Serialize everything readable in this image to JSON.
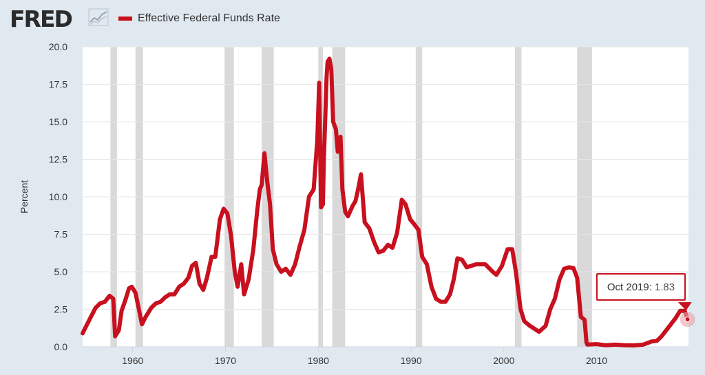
{
  "brand": {
    "logo_text": "FRED"
  },
  "colors": {
    "series": "#c8101e",
    "recession": "#d9d9d9",
    "plot_bg": "#ffffff",
    "page_bg": "#e1e9f0"
  },
  "tooltip": {
    "date": "Oct 2019",
    "separator": ":",
    "value": "1.83"
  },
  "chart_data": {
    "type": "line",
    "title": "",
    "xlabel": "",
    "ylabel": "Percent",
    "xlim": [
      1954.6,
      2019.9
    ],
    "ylim": [
      0,
      20
    ],
    "yticks": [
      "0.0",
      "2.5",
      "5.0",
      "7.5",
      "10.0",
      "12.5",
      "15.0",
      "17.5",
      "20.0"
    ],
    "xticks": [
      "1960",
      "1970",
      "1980",
      "1990",
      "2000",
      "2010"
    ],
    "legend": {
      "placement": "top-left",
      "entries": [
        "Effective Federal Funds Rate"
      ]
    },
    "recessions": [
      [
        1957.6,
        1958.3
      ],
      [
        1960.3,
        1961.1
      ],
      [
        1969.9,
        1970.9
      ],
      [
        1973.9,
        1975.2
      ],
      [
        1980.0,
        1980.5
      ],
      [
        1981.5,
        1982.9
      ],
      [
        1990.5,
        1991.2
      ],
      [
        2001.2,
        2001.9
      ],
      [
        2007.9,
        2009.5
      ]
    ],
    "series": [
      {
        "name": "Effective Federal Funds Rate",
        "x": [
          1954.6,
          1955.0,
          1955.5,
          1956.0,
          1956.5,
          1957.0,
          1957.5,
          1957.9,
          1958.1,
          1958.5,
          1958.8,
          1959.2,
          1959.6,
          1959.9,
          1960.3,
          1960.7,
          1961.0,
          1961.4,
          1962.0,
          1962.5,
          1963.0,
          1963.5,
          1964.0,
          1964.5,
          1965.0,
          1965.5,
          1966.0,
          1966.4,
          1966.8,
          1967.2,
          1967.6,
          1968.0,
          1968.5,
          1968.9,
          1969.4,
          1969.8,
          1970.2,
          1970.6,
          1971.0,
          1971.3,
          1971.7,
          1972.0,
          1972.5,
          1973.0,
          1973.4,
          1973.7,
          1973.9,
          1974.2,
          1974.5,
          1974.8,
          1975.1,
          1975.5,
          1976.0,
          1976.5,
          1977.0,
          1977.5,
          1978.0,
          1978.5,
          1979.0,
          1979.5,
          1979.9,
          1980.1,
          1980.3,
          1980.5,
          1980.6,
          1980.9,
          1981.0,
          1981.2,
          1981.4,
          1981.6,
          1981.9,
          1982.1,
          1982.4,
          1982.6,
          1982.9,
          1983.2,
          1983.7,
          1984.0,
          1984.3,
          1984.6,
          1985.0,
          1985.5,
          1986.0,
          1986.5,
          1987.0,
          1987.5,
          1988.0,
          1988.5,
          1989.0,
          1989.4,
          1989.9,
          1990.3,
          1990.8,
          1991.2,
          1991.7,
          1992.2,
          1992.7,
          1993.2,
          1993.7,
          1994.2,
          1994.6,
          1995.0,
          1995.5,
          1996.0,
          1997.0,
          1998.0,
          1998.8,
          1999.2,
          1999.8,
          2000.4,
          2000.9,
          2001.3,
          2001.8,
          2002.2,
          2002.8,
          2003.3,
          2003.8,
          2004.5,
          2005.0,
          2005.5,
          2006.0,
          2006.5,
          2007.0,
          2007.5,
          2007.9,
          2008.3,
          2008.7,
          2008.9,
          2009.0,
          2010.0,
          2011.0,
          2012.0,
          2013.0,
          2014.0,
          2015.0,
          2015.9,
          2016.5,
          2017.0,
          2017.5,
          2018.0,
          2018.5,
          2019.0,
          2019.5,
          2019.8
        ],
        "values": [
          0.9,
          1.4,
          2.0,
          2.6,
          2.9,
          3.0,
          3.4,
          3.2,
          0.7,
          1.1,
          2.4,
          3.1,
          3.9,
          4.0,
          3.6,
          2.4,
          1.5,
          2.0,
          2.6,
          2.9,
          3.0,
          3.3,
          3.5,
          3.5,
          4.0,
          4.2,
          4.6,
          5.4,
          5.6,
          4.2,
          3.8,
          4.6,
          6.0,
          6.0,
          8.5,
          9.2,
          8.9,
          7.4,
          5.0,
          4.0,
          5.5,
          3.5,
          4.5,
          6.5,
          9.0,
          10.5,
          10.8,
          12.9,
          11.0,
          9.5,
          6.5,
          5.5,
          5.0,
          5.2,
          4.8,
          5.5,
          6.7,
          7.8,
          10.0,
          10.5,
          13.8,
          17.6,
          9.3,
          9.5,
          12.5,
          18.0,
          19.0,
          19.2,
          18.5,
          15.0,
          14.5,
          13.0,
          14.0,
          10.5,
          9.0,
          8.7,
          9.4,
          9.7,
          10.5,
          11.5,
          8.3,
          7.9,
          7.0,
          6.3,
          6.4,
          6.8,
          6.6,
          7.6,
          9.8,
          9.5,
          8.5,
          8.2,
          7.8,
          6.0,
          5.5,
          4.0,
          3.2,
          3.0,
          3.0,
          3.5,
          4.5,
          5.9,
          5.8,
          5.3,
          5.5,
          5.5,
          5.0,
          4.8,
          5.4,
          6.5,
          6.5,
          5.0,
          2.5,
          1.7,
          1.4,
          1.2,
          1.0,
          1.4,
          2.5,
          3.2,
          4.5,
          5.2,
          5.3,
          5.25,
          4.6,
          2.0,
          1.8,
          0.3,
          0.15,
          0.18,
          0.1,
          0.14,
          0.1,
          0.09,
          0.14,
          0.35,
          0.4,
          0.7,
          1.1,
          1.5,
          1.9,
          2.4,
          2.4,
          1.83
        ]
      }
    ]
  }
}
